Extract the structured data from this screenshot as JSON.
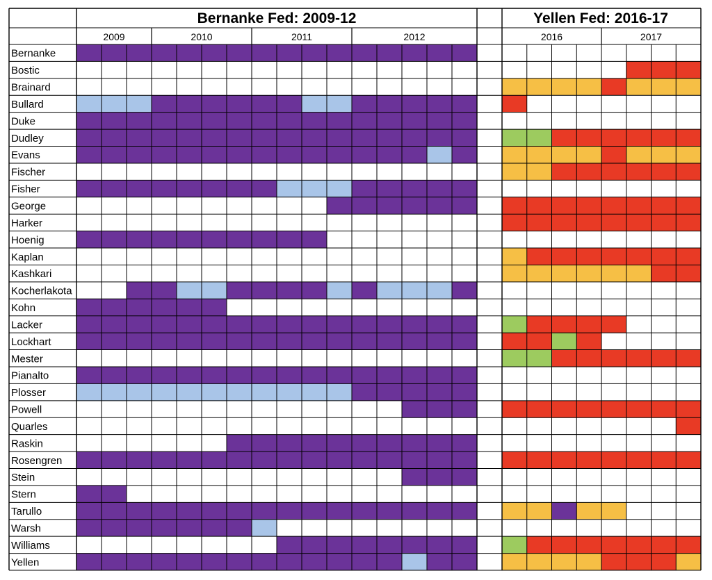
{
  "chart_data": {
    "type": "heatmap",
    "colors": {
      "purple": "#6B3399",
      "lightblue": "#A9C5E8",
      "red": "#E83A25",
      "orange": "#F6BF45",
      "green": "#9DCB5F",
      "white": "#FFFFFF"
    },
    "panels": [
      {
        "title": "Bernanke Fed: 2009-12",
        "years": [
          "2009",
          "2010",
          "2011",
          "2012"
        ],
        "periods_per_year": [
          3,
          4,
          4,
          5
        ],
        "rows": [
          {
            "name": "Bernanke",
            "cells": "PPPPPPPPPPPPPPPP"
          },
          {
            "name": "Bostic",
            "cells": "WWWWWWWWWWWWWWWW"
          },
          {
            "name": "Brainard",
            "cells": "WWWWWWWWWWWWWWWW"
          },
          {
            "name": "Bullard",
            "cells": "BBBPPPPPPBBPPPPP"
          },
          {
            "name": "Duke",
            "cells": "PPPPPPPPPPPPPPPP"
          },
          {
            "name": "Dudley",
            "cells": "PPPPPPPPPPPPPPPP"
          },
          {
            "name": "Evans",
            "cells": "PPPPPPPPPPPPPPBP"
          },
          {
            "name": "Fischer",
            "cells": "WWWWWWWWWWWWWWWW"
          },
          {
            "name": "Fisher",
            "cells": "PPPPPPPPBBBPPPPP"
          },
          {
            "name": "George",
            "cells": "WWWWWWWWWWPPPPPP"
          },
          {
            "name": "Harker",
            "cells": "WWWWWWWWWWWWWWWW"
          },
          {
            "name": "Hoenig",
            "cells": "PPPPPPPPPPWWWWWW"
          },
          {
            "name": "Kaplan",
            "cells": "WWWWWWWWWWWWWWWW"
          },
          {
            "name": "Kashkari",
            "cells": "WWWWWWWWWWWWWWWW"
          },
          {
            "name": "Kocherlakota",
            "cells": "WWPPBBPPPPBPBBBP"
          },
          {
            "name": "Kohn",
            "cells": "PPPPPPWWWWWWWWWW"
          },
          {
            "name": "Lacker",
            "cells": "PPPPPPPPPPPPPPPP"
          },
          {
            "name": "Lockhart",
            "cells": "PPPPPPPPPPPPPPPP"
          },
          {
            "name": "Mester",
            "cells": "WWWWWWWWWWWWWWWW"
          },
          {
            "name": "Pianalto",
            "cells": "PPPPPPPPPPPPPPPP"
          },
          {
            "name": "Plosser",
            "cells": "BBBBBBBBBBBPPPPP"
          },
          {
            "name": "Powell",
            "cells": "WWWWWWWWWWWWWPPP"
          },
          {
            "name": "Quarles",
            "cells": "WWWWWWWWWWWWWWWW"
          },
          {
            "name": "Raskin",
            "cells": "WWWWWWPPPPPPPPPP"
          },
          {
            "name": "Rosengren",
            "cells": "PPPPPPPPPPPPPPPP"
          },
          {
            "name": "Stein",
            "cells": "WWWWWWWWWWWWWPPP"
          },
          {
            "name": "Stern",
            "cells": "PPWWWWWWWWWWWWWW"
          },
          {
            "name": "Tarullo",
            "cells": "PPPPPPPPPPPPPPPP"
          },
          {
            "name": "Warsh",
            "cells": "PPPPPPPBWWWWWWWW"
          },
          {
            "name": "Williams",
            "cells": "WWWWWWWWPPPPPPPP"
          },
          {
            "name": "Yellen",
            "cells": "PPPPPPPPPPPPPBPP"
          }
        ]
      },
      {
        "title": "Yellen Fed: 2016-17",
        "years": [
          "2016",
          "2017"
        ],
        "periods_per_year": [
          4,
          4
        ],
        "rows": [
          {
            "name": "Bernanke",
            "cells": "WWWWWWWW"
          },
          {
            "name": "Bostic",
            "cells": "WWWWWRRR"
          },
          {
            "name": "Brainard",
            "cells": "OOOOROOO"
          },
          {
            "name": "Bullard",
            "cells": "RWWWWWWW"
          },
          {
            "name": "Duke",
            "cells": "WWWWWWWW"
          },
          {
            "name": "Dudley",
            "cells": "GGRRRRRR"
          },
          {
            "name": "Evans",
            "cells": "OOOOROOO"
          },
          {
            "name": "Fischer",
            "cells": "OORRRRRR"
          },
          {
            "name": "Fisher",
            "cells": "WWWWWWWW"
          },
          {
            "name": "George",
            "cells": "RRRRRRRR"
          },
          {
            "name": "Harker",
            "cells": "RRRRRRRR"
          },
          {
            "name": "Hoenig",
            "cells": "WWWWWWWW"
          },
          {
            "name": "Kaplan",
            "cells": "ORRRRRRR"
          },
          {
            "name": "Kashkari",
            "cells": "OOOOOORR"
          },
          {
            "name": "Kocherlakota",
            "cells": "WWWWWWWW"
          },
          {
            "name": "Kohn",
            "cells": "WWWWWWWW"
          },
          {
            "name": "Lacker",
            "cells": "GRRRRWWW"
          },
          {
            "name": "Lockhart",
            "cells": "RRGRWWWW"
          },
          {
            "name": "Mester",
            "cells": "GGRRRRRR"
          },
          {
            "name": "Pianalto",
            "cells": "WWWWWWWW"
          },
          {
            "name": "Plosser",
            "cells": "WWWWWWWW"
          },
          {
            "name": "Powell",
            "cells": "RRRRRRRR"
          },
          {
            "name": "Quarles",
            "cells": "WWWWWWWR"
          },
          {
            "name": "Raskin",
            "cells": "WWWWWWWW"
          },
          {
            "name": "Rosengren",
            "cells": "RRRRRRRR"
          },
          {
            "name": "Stein",
            "cells": "WWWWWWWW"
          },
          {
            "name": "Stern",
            "cells": "WWWWWWWW"
          },
          {
            "name": "Tarullo",
            "cells": "OOPOOWWW"
          },
          {
            "name": "Warsh",
            "cells": "WWWWWWWW"
          },
          {
            "name": "Williams",
            "cells": "GRRRRRRR"
          },
          {
            "name": "Yellen",
            "cells": "OOOORRRO"
          }
        ]
      }
    ]
  }
}
